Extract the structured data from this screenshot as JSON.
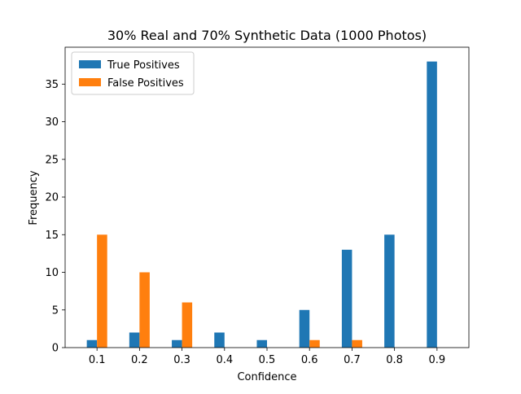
{
  "chart_data": {
    "type": "bar",
    "title": "30% Real and 70% Synthetic Data (1000 Photos)",
    "xlabel": "Confidence",
    "ylabel": "Frequency",
    "categories": [
      "0.1",
      "0.2",
      "0.3",
      "0.4",
      "0.5",
      "0.6",
      "0.7",
      "0.8",
      "0.9"
    ],
    "series": [
      {
        "name": "True Positives",
        "color": "#1f77b4",
        "values": [
          1,
          2,
          1,
          2,
          1,
          5,
          13,
          15,
          38
        ]
      },
      {
        "name": "False Positives",
        "color": "#ff7f0e",
        "values": [
          15,
          10,
          6,
          0,
          0,
          1,
          1,
          0,
          0
        ]
      }
    ],
    "ylim": [
      0,
      39.9
    ],
    "yticks": [
      0,
      5,
      10,
      15,
      20,
      25,
      30,
      35
    ],
    "grid": false,
    "legend_position": "top-left"
  }
}
